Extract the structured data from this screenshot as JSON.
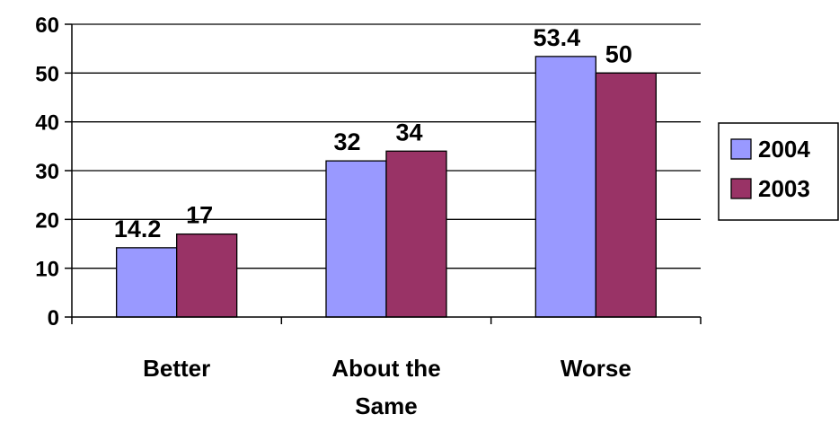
{
  "chart_data": {
    "type": "bar",
    "categories": [
      "Better",
      "About the Same",
      "Worse"
    ],
    "series": [
      {
        "name": "2004",
        "values": [
          14.2,
          32,
          53.4
        ],
        "color": "#9999FF"
      },
      {
        "name": "2003",
        "values": [
          17,
          34,
          50
        ],
        "color": "#993366"
      }
    ],
    "data_labels": [
      [
        "14.2",
        "32",
        "53.4"
      ],
      [
        "17",
        "34",
        "50"
      ]
    ],
    "ylim": [
      0,
      60
    ],
    "yticks": [
      0,
      10,
      20,
      30,
      40,
      50,
      60
    ],
    "title": "",
    "xlabel": "",
    "ylabel": "",
    "grid": true,
    "legend_position": "right"
  }
}
